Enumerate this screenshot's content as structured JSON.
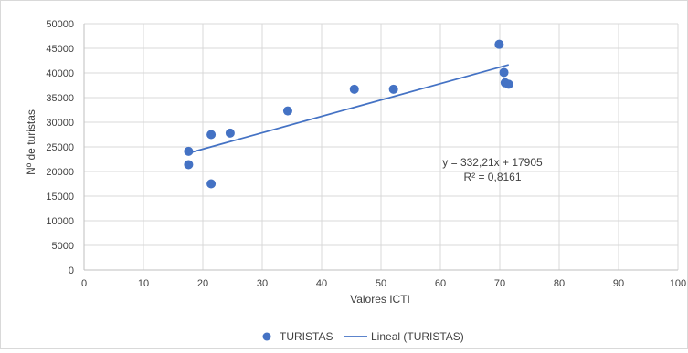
{
  "chart_data": {
    "type": "scatter",
    "title": "",
    "xlabel": "Valores ICTI",
    "ylabel": "Nº de turistas",
    "xlim": [
      0,
      100
    ],
    "ylim": [
      0,
      50000
    ],
    "x_ticks": [
      "0",
      "10",
      "20",
      "30",
      "40",
      "50",
      "60",
      "70",
      "80",
      "90",
      "100"
    ],
    "y_ticks": [
      "0",
      "5000",
      "10000",
      "15000",
      "20000",
      "25000",
      "30000",
      "35000",
      "40000",
      "45000",
      "50000"
    ],
    "grid": true,
    "legend_position": "bottom",
    "series": [
      {
        "name": "TURISTAS",
        "color": "#4472c4",
        "points": [
          {
            "x": 17.6,
            "y": 24100
          },
          {
            "x": 17.6,
            "y": 21400
          },
          {
            "x": 21.4,
            "y": 27500
          },
          {
            "x": 21.4,
            "y": 17500
          },
          {
            "x": 24.6,
            "y": 27800
          },
          {
            "x": 34.3,
            "y": 32300
          },
          {
            "x": 45.5,
            "y": 36700
          },
          {
            "x": 52.1,
            "y": 36700
          },
          {
            "x": 69.9,
            "y": 45800
          },
          {
            "x": 70.7,
            "y": 40100
          },
          {
            "x": 70.9,
            "y": 38000
          },
          {
            "x": 71.5,
            "y": 37700
          }
        ]
      }
    ],
    "trendline": {
      "name": "Lineal (TURISTAS)",
      "color": "#4472c4",
      "slope": 332.21,
      "intercept": 17905,
      "x_range": [
        17.6,
        71.5
      ],
      "equation_label": "y = 332,21x + 17905",
      "r2_label": "R² = 0,8161"
    }
  }
}
